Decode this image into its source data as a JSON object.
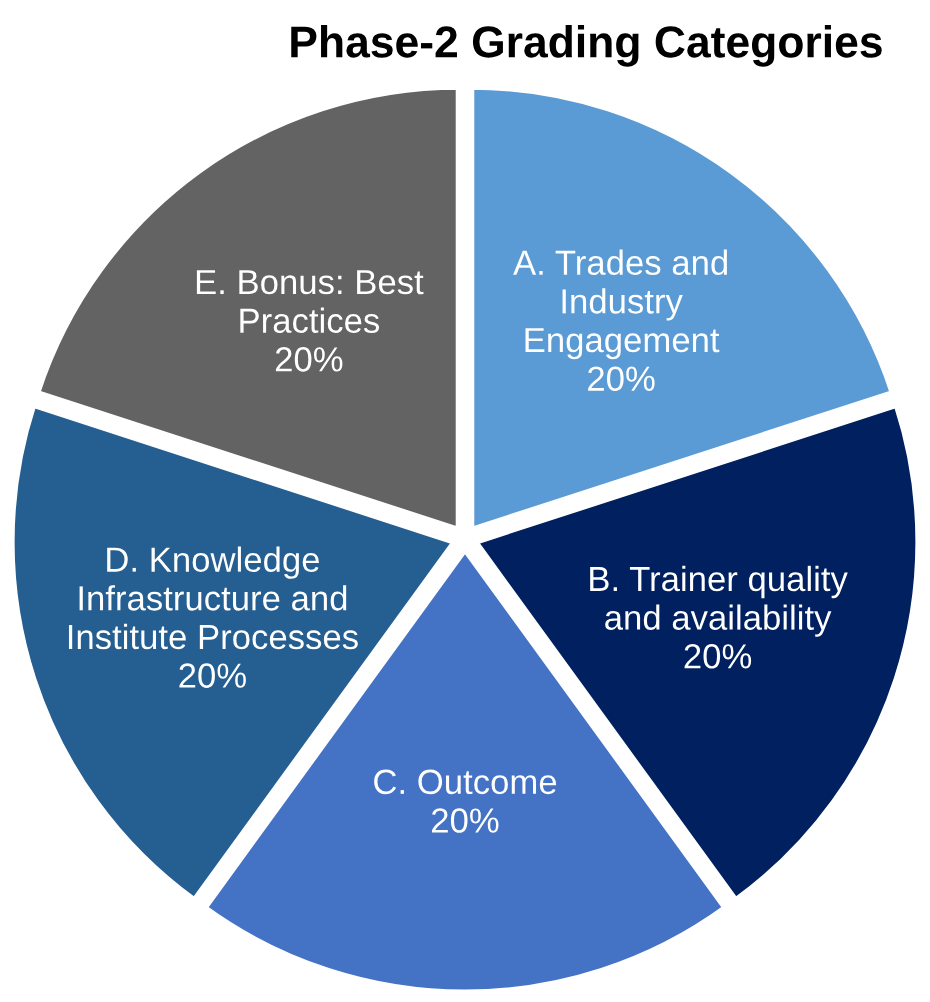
{
  "chart_data": {
    "type": "pie",
    "title": "Phase-2 Grading Categories",
    "categories": [
      "A. Trades and\nIndustry\nEngagement",
      "B. Trainer quality\nand availability",
      "C. Outcome",
      "D. Knowledge\nInfrastructure and\nInstitute Processes",
      "E. Bonus: Best\nPractices"
    ],
    "values": [
      20,
      20,
      20,
      20,
      20
    ],
    "value_labels": [
      "20%",
      "20%",
      "20%",
      "20%",
      "20%"
    ],
    "colors": [
      "#5b9bd5",
      "#002060",
      "#4472c4",
      "#255e91",
      "#636363"
    ]
  }
}
